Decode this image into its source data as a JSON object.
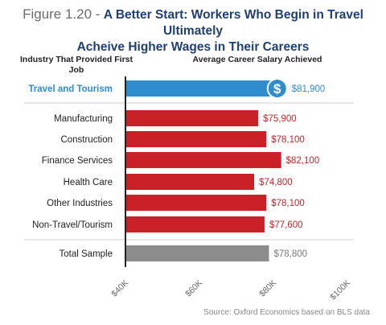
{
  "title": {
    "figure_label": "Figure 1.20 -",
    "line1": "A Better Start: Workers Who Begin in Travel Ultimately",
    "line2": "Acheive Higher Wages in Their Careers"
  },
  "headers": {
    "industry": "Industry That Provided First Job",
    "salary": "Average Career Salary Achieved"
  },
  "source": "Source: Oxford Economics based on BLS data",
  "colors": {
    "highlight": "#2e8ccf",
    "bar": "#c92127",
    "total": "#8c8c8c",
    "highlight_label": "#2e8ccf",
    "bar_label": "#c92127",
    "total_label": "#7a7a7a"
  },
  "icon": "dollar-circle-icon",
  "chart_data": {
    "type": "bar",
    "orientation": "horizontal",
    "categories": [
      "Travel and Tourism",
      "Manufacturing",
      "Construction",
      "Finance Services",
      "Health Care",
      "Other Industries",
      "Non-Travel/Tourism",
      "Total Sample"
    ],
    "values": [
      81900,
      75900,
      78100,
      82100,
      74800,
      78100,
      77600,
      78800
    ],
    "value_labels": [
      "$81,900",
      "$75,900",
      "$78,100",
      "$82,100",
      "$74,800",
      "$78,100",
      "$77,600",
      "$78,800"
    ],
    "groups": [
      "highlight",
      "bar",
      "bar",
      "bar",
      "bar",
      "bar",
      "bar",
      "total"
    ],
    "xlim": [
      40000,
      100000
    ],
    "ticks": [
      40000,
      60000,
      80000,
      100000
    ],
    "tick_labels": [
      "$40K",
      "$60K",
      "$80K",
      "$100K"
    ],
    "title": "A Better Start: Workers Who Begin in Travel Ultimately Acheive Higher Wages in Their Careers",
    "xlabel": "",
    "ylabel": "Industry That Provided First Job"
  }
}
